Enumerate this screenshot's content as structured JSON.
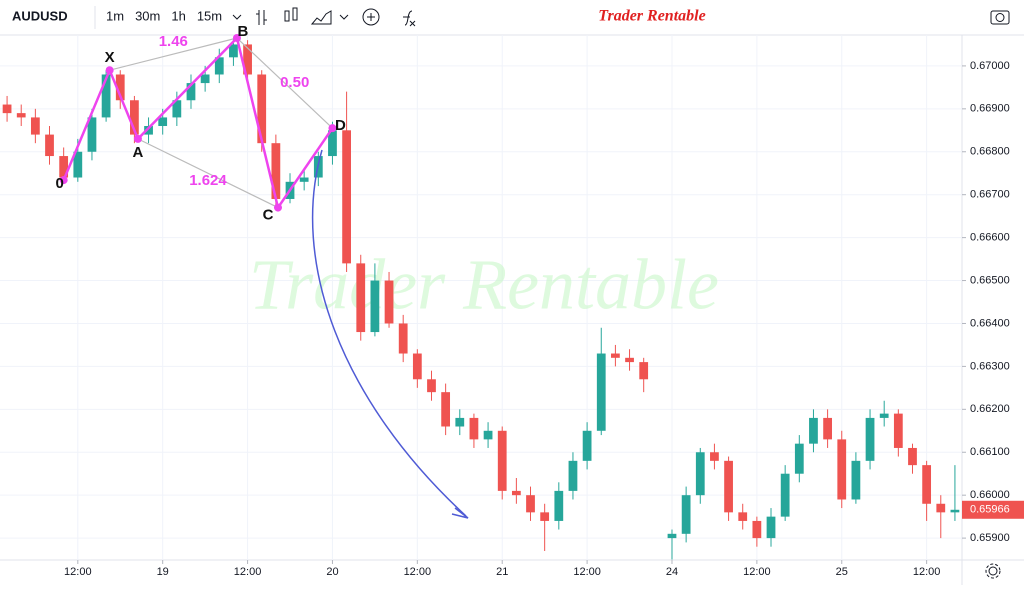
{
  "toolbar": {
    "symbol": "AUDUSD",
    "intervals": [
      "1m",
      "30m",
      "1h",
      "15m"
    ],
    "active_interval": 2
  },
  "brand": "Trader Rentable",
  "chart_data": {
    "type": "candlestick",
    "x": [
      -10,
      -8,
      -6,
      -4,
      -2,
      0,
      2,
      4,
      6,
      8,
      10,
      12,
      14,
      16,
      18,
      20,
      22,
      24,
      26,
      28,
      30,
      32,
      34,
      36,
      38,
      40,
      42,
      44,
      46,
      48,
      50,
      52,
      54,
      56,
      58,
      60,
      62,
      64,
      66,
      68,
      70,
      72,
      74,
      76,
      78,
      80,
      84,
      86,
      88,
      90,
      92,
      94,
      96,
      98,
      100,
      102,
      104,
      106,
      108,
      110,
      112,
      114,
      116,
      118,
      120,
      122,
      124
    ],
    "open": [
      0.6691,
      0.6689,
      0.6688,
      0.6684,
      0.6679,
      0.6674,
      0.668,
      0.6688,
      0.6698,
      0.6692,
      0.6684,
      0.6686,
      0.6688,
      0.6692,
      0.6696,
      0.6698,
      0.6702,
      0.6705,
      0.6698,
      0.6682,
      0.6669,
      0.6673,
      0.6674,
      0.6679,
      0.6685,
      0.6654,
      0.6638,
      0.665,
      0.664,
      0.6633,
      0.6627,
      0.6624,
      0.6616,
      0.6618,
      0.6613,
      0.6615,
      0.6601,
      0.66,
      0.6596,
      0.6594,
      0.6601,
      0.6608,
      0.6615,
      0.6633,
      0.6632,
      0.6631,
      0.659,
      0.6591,
      0.66,
      0.661,
      0.6608,
      0.6596,
      0.6594,
      0.659,
      0.6595,
      0.6605,
      0.6612,
      0.6618,
      0.6613,
      0.6599,
      0.6608,
      0.6618,
      0.6619,
      0.6611,
      0.6607,
      0.6598,
      0.6596
    ],
    "high": [
      0.6693,
      0.6691,
      0.669,
      0.6686,
      0.6681,
      0.6683,
      0.669,
      0.6699,
      0.6699,
      0.6693,
      0.6688,
      0.669,
      0.6694,
      0.6698,
      0.67,
      0.6704,
      0.67065,
      0.6706,
      0.6699,
      0.6684,
      0.6675,
      0.6676,
      0.668,
      0.6687,
      0.6694,
      0.6656,
      0.6654,
      0.6652,
      0.6642,
      0.6634,
      0.6629,
      0.6626,
      0.662,
      0.6619,
      0.6617,
      0.6616,
      0.6604,
      0.6602,
      0.6598,
      0.6603,
      0.661,
      0.6617,
      0.6639,
      0.6635,
      0.6634,
      0.6632,
      0.6592,
      0.6602,
      0.6611,
      0.6612,
      0.6609,
      0.6598,
      0.6595,
      0.6597,
      0.6607,
      0.6614,
      0.662,
      0.662,
      0.6615,
      0.661,
      0.662,
      0.6622,
      0.662,
      0.6612,
      0.6608,
      0.66,
      0.6607
    ],
    "low": [
      0.6687,
      0.6686,
      0.6682,
      0.6677,
      0.6673,
      0.6673,
      0.6678,
      0.6687,
      0.669,
      0.6682,
      0.6682,
      0.6684,
      0.6686,
      0.669,
      0.6694,
      0.6696,
      0.67,
      0.6696,
      0.668,
      0.6667,
      0.6668,
      0.6671,
      0.6672,
      0.6677,
      0.6652,
      0.6636,
      0.6637,
      0.6639,
      0.6631,
      0.6625,
      0.6622,
      0.6614,
      0.6614,
      0.6611,
      0.6611,
      0.6599,
      0.6598,
      0.6594,
      0.6587,
      0.6592,
      0.6599,
      0.6606,
      0.6614,
      0.663,
      0.6629,
      0.6624,
      0.6585,
      0.6589,
      0.6598,
      0.6606,
      0.6594,
      0.6592,
      0.6588,
      0.6588,
      0.6594,
      0.6603,
      0.661,
      0.6611,
      0.6597,
      0.6598,
      0.6606,
      0.6616,
      0.6609,
      0.6605,
      0.6594,
      0.659,
      0.6594
    ],
    "close": [
      0.6689,
      0.6688,
      0.6684,
      0.6679,
      0.6674,
      0.668,
      0.6688,
      0.6698,
      0.6692,
      0.6684,
      0.6686,
      0.6688,
      0.6692,
      0.6696,
      0.6698,
      0.6702,
      0.6705,
      0.6698,
      0.6682,
      0.6669,
      0.6673,
      0.6674,
      0.6679,
      0.6685,
      0.6654,
      0.6638,
      0.665,
      0.664,
      0.6633,
      0.6627,
      0.6624,
      0.6616,
      0.6618,
      0.6613,
      0.6615,
      0.6601,
      0.66,
      0.6596,
      0.6594,
      0.6601,
      0.6608,
      0.6615,
      0.6633,
      0.6632,
      0.6631,
      0.6627,
      0.6591,
      0.66,
      0.661,
      0.6608,
      0.6596,
      0.6594,
      0.659,
      0.6595,
      0.6605,
      0.6612,
      0.6618,
      0.6613,
      0.6599,
      0.6608,
      0.6618,
      0.6619,
      0.6611,
      0.6607,
      0.6598,
      0.6596,
      0.65966
    ],
    "up_color": "#26a69a",
    "down_color": "#ef5350",
    "xlim": [
      -11,
      125
    ],
    "xticks": [
      {
        "value": 0,
        "label": "12:00"
      },
      {
        "value": 12,
        "label": "19"
      },
      {
        "value": 24,
        "label": "12:00"
      },
      {
        "value": 36,
        "label": "20"
      },
      {
        "value": 48,
        "label": "12:00"
      },
      {
        "value": 60,
        "label": "21"
      },
      {
        "value": 72,
        "label": "12:00"
      },
      {
        "value": 84,
        "label": "24"
      },
      {
        "value": 96,
        "label": "12:00"
      },
      {
        "value": 108,
        "label": "25"
      },
      {
        "value": 120,
        "label": "12:00"
      }
    ],
    "ylim": [
      0.65849,
      0.67072
    ],
    "yticks": [
      {
        "value": 0.659,
        "label": "0.65900"
      },
      {
        "value": 0.66,
        "label": "0.66000"
      },
      {
        "value": 0.661,
        "label": "0.66100"
      },
      {
        "value": 0.662,
        "label": "0.66200"
      },
      {
        "value": 0.663,
        "label": "0.66300"
      },
      {
        "value": 0.664,
        "label": "0.66400"
      },
      {
        "value": 0.665,
        "label": "0.66500"
      },
      {
        "value": 0.666,
        "label": "0.66600"
      },
      {
        "value": 0.667,
        "label": "0.66700"
      },
      {
        "value": 0.668,
        "label": "0.66800"
      },
      {
        "value": 0.669,
        "label": "0.66900"
      },
      {
        "value": 0.67,
        "label": "0.67000"
      }
    ],
    "grid": true,
    "pattern": {
      "color": "#ee44ee",
      "points": [
        {
          "label": "0",
          "x": -2,
          "y": 0.66734
        },
        {
          "label": "X",
          "x": 4.5,
          "y": 0.6699
        },
        {
          "label": "A",
          "x": 8.5,
          "y": 0.6683
        },
        {
          "label": "B",
          "x": 22.5,
          "y": 0.67065
        },
        {
          "label": "C",
          "x": 28.3,
          "y": 0.6667
        },
        {
          "label": "D",
          "x": 36,
          "y": 0.66855
        }
      ],
      "ratios": [
        "1.46",
        "0.50",
        "1.624"
      ]
    }
  }
}
